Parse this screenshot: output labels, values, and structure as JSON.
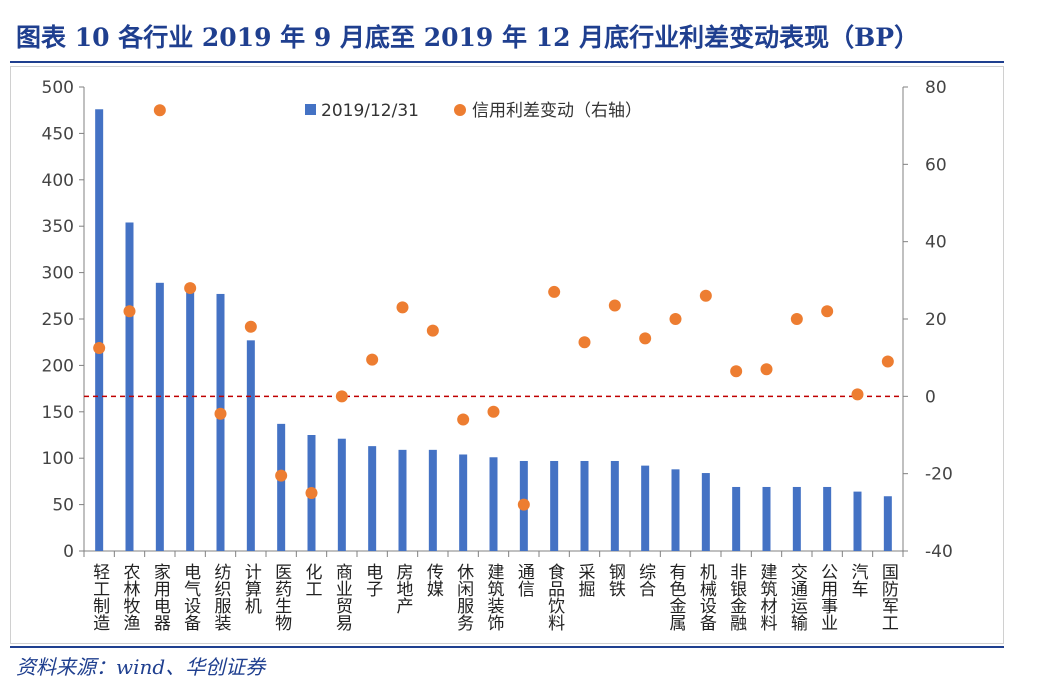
{
  "title": "图表 10   各行业 2019 年 9 月底至 2019 年 12 月底行业利差变动表现（BP）",
  "source": "资料来源：wind、华创证券",
  "colors": {
    "bar": "#4472C4",
    "dot": "#ED7D31",
    "zero_line": "#C00000",
    "title": "#1F3F8F"
  },
  "chart_data": {
    "type": "bar+scatter",
    "categories": [
      "轻工制造",
      "农林牧渔",
      "家用电器",
      "电气设备",
      "纺织服装",
      "计算机",
      "医药生物",
      "化工",
      "商业贸易",
      "电子",
      "房地产",
      "传媒",
      "休闲服务",
      "建筑装饰",
      "通信",
      "食品饮料",
      "采掘",
      "钢铁",
      "综合",
      "有色金属",
      "机械设备",
      "非银金融",
      "建筑材料",
      "交通运输",
      "公用事业",
      "汽车",
      "国防军工"
    ],
    "series": [
      {
        "name": "2019/12/31",
        "type": "bar",
        "axis": "left",
        "values": [
          476,
          354,
          289,
          285,
          277,
          227,
          137,
          125,
          121,
          113,
          109,
          109,
          104,
          101,
          97,
          97,
          97,
          97,
          92,
          88,
          84,
          69,
          69,
          69,
          69,
          64,
          59
        ]
      },
      {
        "name": "信用利差变动（右轴）",
        "type": "scatter",
        "axis": "right",
        "values": [
          12.5,
          22,
          74,
          28,
          -4.5,
          18,
          -20.5,
          -25,
          0,
          9.5,
          23,
          17,
          -6,
          -4,
          -28,
          27,
          14,
          23.5,
          15,
          20,
          26,
          6.5,
          7,
          20,
          22,
          0.5,
          9
        ]
      }
    ],
    "y_left": {
      "min": 0,
      "max": 500,
      "ticks": [
        "0",
        "50",
        "100",
        "150",
        "200",
        "250",
        "300",
        "350",
        "400",
        "450",
        "500"
      ]
    },
    "y_right": {
      "min": -40,
      "max": 80,
      "ticks": [
        "-40",
        "-20",
        "0",
        "20",
        "40",
        "60",
        "80"
      ]
    },
    "reference_line": {
      "axis": "right",
      "value": 0,
      "style": "dashed"
    },
    "legend": {
      "position": "top",
      "entries": [
        "2019/12/31",
        "信用利差变动（右轴）"
      ]
    }
  }
}
